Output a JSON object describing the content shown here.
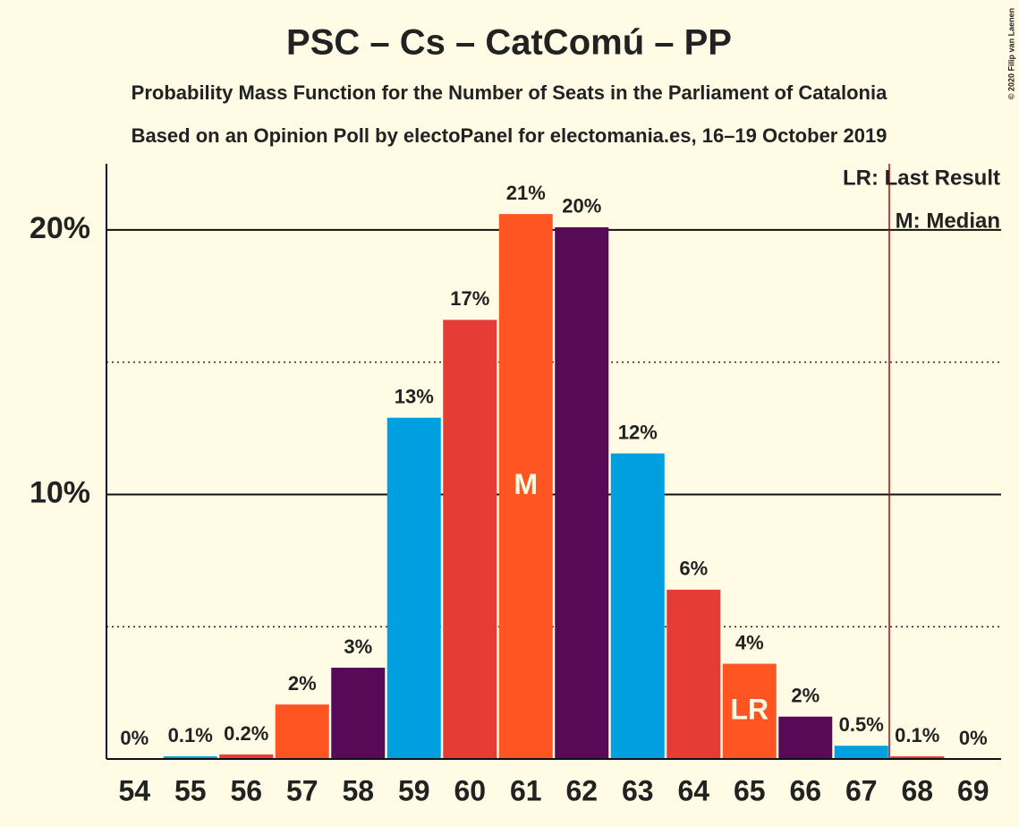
{
  "chart_data": {
    "type": "bar",
    "title": "PSC – Cs – CatComú – PP",
    "subtitle": "Probability Mass Function for the Number of Seats in the Parliament of Catalonia",
    "subtitle2": "Based on an Opinion Poll by electoPanel for electomania.es, 16–19 October 2019",
    "copyright": "© 2020 Filip van Laenen",
    "categories": [
      "54",
      "55",
      "56",
      "57",
      "58",
      "59",
      "60",
      "61",
      "62",
      "63",
      "64",
      "65",
      "66",
      "67",
      "68",
      "69"
    ],
    "values": [
      0,
      0.1,
      0.17,
      2.06,
      3.45,
      12.9,
      16.6,
      20.6,
      20.1,
      11.55,
      6.4,
      3.6,
      1.6,
      0.5,
      0.1,
      0
    ],
    "value_labels": [
      "0%",
      "0.1%",
      "0.2%",
      "2%",
      "3%",
      "13%",
      "17%",
      "21%",
      "20%",
      "12%",
      "6%",
      "4%",
      "2%",
      "0.5%",
      "0.1%",
      "0%"
    ],
    "colors": [
      "#570a56",
      "#009fe0",
      "#e63c36",
      "#ff5522",
      "#570a56",
      "#009fe0",
      "#e63c36",
      "#ff5522",
      "#570a56",
      "#009fe0",
      "#e63c36",
      "#ff5522",
      "#570a56",
      "#009fe0",
      "#e63c36",
      "#ff5522"
    ],
    "ylim": [
      0,
      22.5
    ],
    "yticks": [
      {
        "value": 10,
        "label": "10%"
      },
      {
        "value": 20,
        "label": "20%"
      }
    ],
    "minor_gridlines": [
      5,
      15
    ],
    "markers": [
      {
        "label": "M",
        "category": "61"
      },
      {
        "label": "LR",
        "category": "65"
      }
    ],
    "threshold_x": 67.5,
    "threshold_color": "#c00000",
    "legend": [
      "LR: Last Result",
      "M: Median"
    ],
    "legend_position": "top-right"
  }
}
